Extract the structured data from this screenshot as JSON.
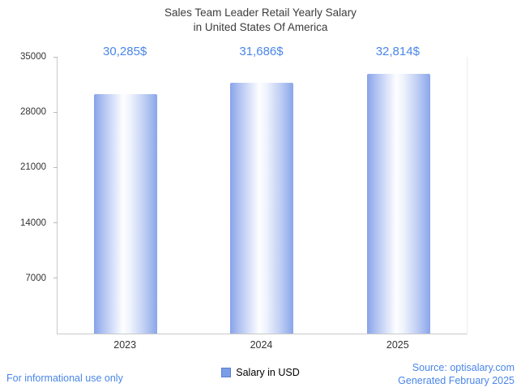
{
  "title": {
    "line1": "Sales Team Leader Retail Yearly Salary",
    "line2": "in United States Of America"
  },
  "chart_data": {
    "type": "bar",
    "categories": [
      "2023",
      "2024",
      "2025"
    ],
    "values": [
      30285,
      31686,
      32814
    ],
    "value_labels": [
      "30,285$",
      "31,686$",
      "32,814$"
    ],
    "series_name": "Salary in USD",
    "ylim": [
      0,
      35000
    ],
    "yticks": [
      7000,
      14000,
      21000,
      28000,
      35000
    ],
    "grid": false,
    "legend_position": "bottom-center",
    "bar_color": "#7b9de6",
    "bar_gradient_edge": "#87a3e9",
    "bar_gradient_center": "#fdfeff",
    "value_label_color": "#4a86e8",
    "axis_color": "#c9c9c9"
  },
  "legend": {
    "label": "Salary in USD"
  },
  "footer": {
    "left": "For informational use only",
    "source": "Source: optisalary.com",
    "generated": "Generated February 2025"
  }
}
